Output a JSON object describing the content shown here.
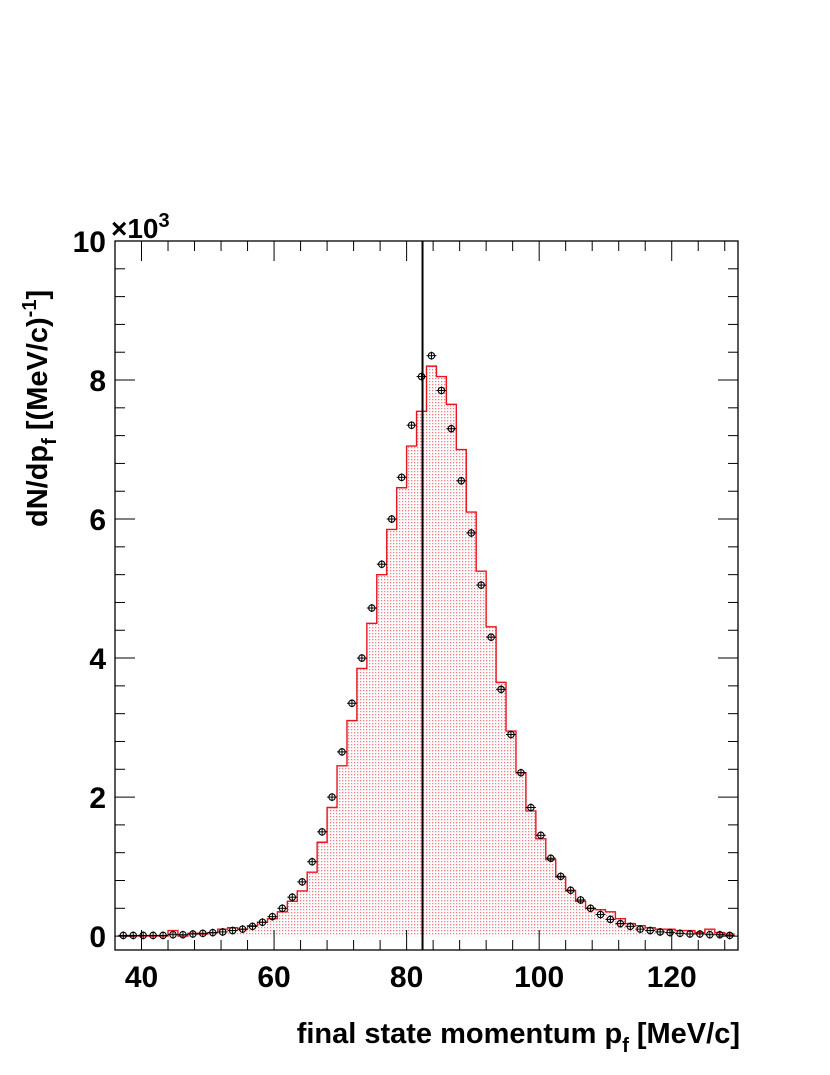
{
  "chart_data": {
    "type": "histogram",
    "title": "",
    "xlabel": "final state momentum",
    "xlabel_symbol": "p",
    "xlabel_subscript": "f",
    "xlabel_unit": "[MeV/c]",
    "ylabel_prefix": "dN/dp",
    "ylabel_subscript": "f",
    "ylabel_unit_open": " [(MeV/c)",
    "ylabel_unit_exp": "-1",
    "ylabel_unit_close": "]",
    "y_multiplier_text": "×10",
    "y_multiplier_exp": "3",
    "xlim": [
      36,
      130
    ],
    "ylim": [
      -0.2,
      10
    ],
    "xticks": [
      40,
      60,
      80,
      100,
      120
    ],
    "yticks": [
      0,
      2,
      4,
      6,
      8,
      10
    ],
    "x_units_note": "MeV/c",
    "y_units_note": "thousands per MeV/c",
    "bin_width": 1.5,
    "vertical_line_x": 82.4,
    "colors": {
      "histogram_line": "#e8141e",
      "histogram_fill": "#f4b7bc",
      "data_points": "#000000",
      "vertical_line": "#000000",
      "frame": "#000000"
    },
    "series": [
      {
        "kind": "data-points",
        "x": [
          37.25,
          38.75,
          40.25,
          41.75,
          43.25,
          44.75,
          46.25,
          47.75,
          49.25,
          50.75,
          52.25,
          53.75,
          55.25,
          56.75,
          58.25,
          59.75,
          61.25,
          62.75,
          64.25,
          65.75,
          67.25,
          68.75,
          70.25,
          71.75,
          73.25,
          74.75,
          76.25,
          77.75,
          79.25,
          80.75,
          82.25,
          83.75,
          85.25,
          86.75,
          88.25,
          89.75,
          91.25,
          92.75,
          94.25,
          95.75,
          97.25,
          98.75,
          100.25,
          101.75,
          103.25,
          104.75,
          106.25,
          107.75,
          109.25,
          110.75,
          112.25,
          113.75,
          115.25,
          116.75,
          118.25,
          119.75,
          121.25,
          122.75,
          124.25,
          125.75,
          127.25,
          128.75
        ],
        "values": [
          0.01,
          0.01,
          0.01,
          0.01,
          0.01,
          0.02,
          0.02,
          0.03,
          0.04,
          0.05,
          0.06,
          0.08,
          0.1,
          0.14,
          0.2,
          0.28,
          0.4,
          0.56,
          0.78,
          1.07,
          1.5,
          2.0,
          2.65,
          3.35,
          4.0,
          4.72,
          5.35,
          6.0,
          6.6,
          7.35,
          8.05,
          8.35,
          7.85,
          7.3,
          6.55,
          5.8,
          5.05,
          4.3,
          3.55,
          2.9,
          2.35,
          1.85,
          1.45,
          1.12,
          0.86,
          0.66,
          0.52,
          0.4,
          0.31,
          0.24,
          0.18,
          0.14,
          0.1,
          0.08,
          0.06,
          0.05,
          0.04,
          0.03,
          0.03,
          0.02,
          0.02,
          0.01
        ],
        "note": "values read off the chart by eye; approximate"
      },
      {
        "kind": "histogram",
        "x": [
          37.25,
          38.75,
          40.25,
          41.75,
          43.25,
          44.75,
          46.25,
          47.75,
          49.25,
          50.75,
          52.25,
          53.75,
          55.25,
          56.75,
          58.25,
          59.75,
          61.25,
          62.75,
          64.25,
          65.75,
          67.25,
          68.75,
          70.25,
          71.75,
          73.25,
          74.75,
          76.25,
          77.75,
          79.25,
          80.75,
          82.25,
          83.75,
          85.25,
          86.75,
          88.25,
          89.75,
          91.25,
          92.75,
          94.25,
          95.75,
          97.25,
          98.75,
          100.25,
          101.75,
          103.25,
          104.75,
          106.25,
          107.75,
          109.25,
          110.75,
          112.25,
          113.75,
          115.25,
          116.75,
          118.25,
          119.75,
          121.25,
          122.75,
          124.25,
          125.75,
          127.25,
          128.75
        ],
        "values": [
          0.0,
          0.0,
          0.0,
          0.0,
          0.0,
          0.08,
          0.0,
          0.04,
          0.03,
          0.05,
          0.1,
          0.12,
          0.1,
          0.15,
          0.2,
          0.25,
          0.35,
          0.5,
          0.65,
          0.92,
          1.35,
          1.85,
          2.45,
          3.1,
          3.85,
          4.5,
          5.2,
          5.85,
          6.45,
          7.05,
          7.55,
          8.2,
          8.05,
          7.65,
          7.0,
          6.1,
          5.25,
          4.45,
          3.65,
          2.95,
          2.35,
          1.8,
          1.4,
          1.1,
          0.85,
          0.65,
          0.5,
          0.4,
          0.38,
          0.35,
          0.25,
          0.18,
          0.15,
          0.12,
          0.1,
          0.1,
          0.08,
          0.08,
          0.05,
          0.1,
          0.05,
          0.03
        ],
        "note": "values read off the chart by eye; approximate"
      }
    ]
  }
}
